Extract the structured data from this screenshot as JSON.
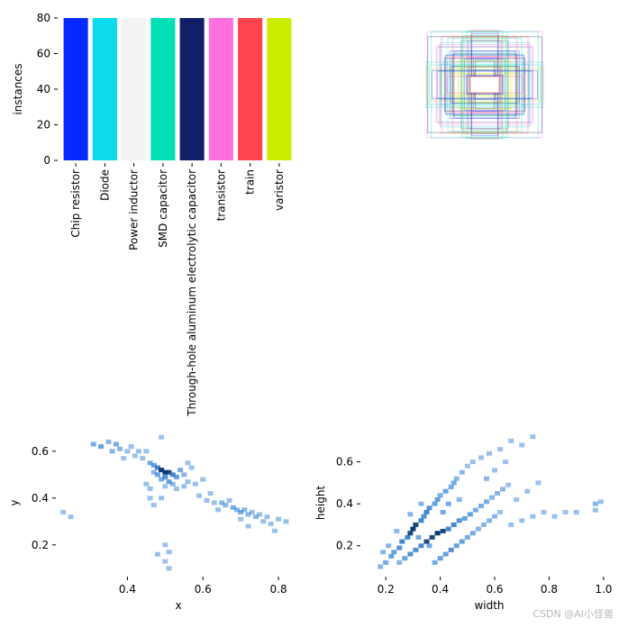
{
  "chart_data": [
    {
      "type": "bar",
      "ylabel": "instances",
      "ylim": [
        0,
        80
      ],
      "yticks": [
        "0",
        "20",
        "40",
        "60",
        "80"
      ],
      "categories": [
        "Chip resistor",
        "Diode",
        "Power inductor",
        "SMD capacitor",
        "Through-hole aluminum electrolytic capacitor",
        "transistor",
        "train",
        "varistor"
      ],
      "values": [
        80,
        80,
        80,
        80,
        80,
        80,
        80,
        80
      ],
      "colors": [
        "#042aff",
        "#0bdbeb",
        "#f3f3f3",
        "#00dfb7",
        "#111f68",
        "#ff6fdd",
        "#ff444f",
        "#cced00"
      ]
    },
    {
      "type": "box-overlay",
      "description_colors": [
        "#042aff",
        "#0bdbeb",
        "#00dfb7",
        "#111f68",
        "#ff6fdd",
        "#ff444f",
        "#cced00"
      ]
    },
    {
      "type": "heatmap",
      "xlabel": "x",
      "ylabel": "y",
      "xlim": [
        0.22,
        0.85
      ],
      "ylim": [
        0.08,
        0.68
      ],
      "xticks": [
        "0.4",
        "0.6",
        "0.8"
      ],
      "yticks": [
        "0.2",
        "0.4",
        "0.6"
      ],
      "color": "#1f77d4",
      "points": [
        [
          0.31,
          0.63,
          0.5
        ],
        [
          0.33,
          0.62,
          0.6
        ],
        [
          0.35,
          0.64,
          0.4
        ],
        [
          0.37,
          0.63,
          0.5
        ],
        [
          0.36,
          0.6,
          0.4
        ],
        [
          0.38,
          0.61,
          0.4
        ],
        [
          0.4,
          0.6,
          0.3
        ],
        [
          0.42,
          0.58,
          0.3
        ],
        [
          0.39,
          0.57,
          0.3
        ],
        [
          0.44,
          0.57,
          0.3
        ],
        [
          0.46,
          0.55,
          0.5
        ],
        [
          0.47,
          0.54,
          0.6
        ],
        [
          0.48,
          0.53,
          0.8
        ],
        [
          0.49,
          0.52,
          1.0
        ],
        [
          0.5,
          0.51,
          1.0
        ],
        [
          0.51,
          0.51,
          0.9
        ],
        [
          0.52,
          0.5,
          0.8
        ],
        [
          0.5,
          0.49,
          0.7
        ],
        [
          0.49,
          0.48,
          0.5
        ],
        [
          0.51,
          0.47,
          0.6
        ],
        [
          0.53,
          0.49,
          0.6
        ],
        [
          0.54,
          0.52,
          0.5
        ],
        [
          0.55,
          0.5,
          0.4
        ],
        [
          0.48,
          0.5,
          0.6
        ],
        [
          0.47,
          0.51,
          0.4
        ],
        [
          0.52,
          0.46,
          0.4
        ],
        [
          0.5,
          0.45,
          0.3
        ],
        [
          0.53,
          0.44,
          0.3
        ],
        [
          0.56,
          0.47,
          0.3
        ],
        [
          0.58,
          0.46,
          0.3
        ],
        [
          0.57,
          0.53,
          0.3
        ],
        [
          0.6,
          0.48,
          0.3
        ],
        [
          0.45,
          0.46,
          0.3
        ],
        [
          0.46,
          0.44,
          0.3
        ],
        [
          0.62,
          0.42,
          0.3
        ],
        [
          0.63,
          0.38,
          0.3
        ],
        [
          0.65,
          0.38,
          0.4
        ],
        [
          0.66,
          0.37,
          0.4
        ],
        [
          0.68,
          0.36,
          0.5
        ],
        [
          0.69,
          0.35,
          0.4
        ],
        [
          0.7,
          0.34,
          0.5
        ],
        [
          0.71,
          0.35,
          0.4
        ],
        [
          0.72,
          0.33,
          0.4
        ],
        [
          0.73,
          0.34,
          0.3
        ],
        [
          0.74,
          0.32,
          0.4
        ],
        [
          0.75,
          0.33,
          0.3
        ],
        [
          0.76,
          0.3,
          0.3
        ],
        [
          0.77,
          0.32,
          0.3
        ],
        [
          0.78,
          0.29,
          0.3
        ],
        [
          0.8,
          0.31,
          0.3
        ],
        [
          0.7,
          0.31,
          0.3
        ],
        [
          0.72,
          0.28,
          0.3
        ],
        [
          0.67,
          0.39,
          0.3
        ],
        [
          0.64,
          0.35,
          0.3
        ],
        [
          0.59,
          0.41,
          0.3
        ],
        [
          0.61,
          0.39,
          0.3
        ],
        [
          0.79,
          0.26,
          0.3
        ],
        [
          0.82,
          0.3,
          0.3
        ],
        [
          0.23,
          0.34,
          0.3
        ],
        [
          0.25,
          0.32,
          0.3
        ],
        [
          0.49,
          0.66,
          0.3
        ],
        [
          0.41,
          0.62,
          0.3
        ],
        [
          0.43,
          0.6,
          0.3
        ],
        [
          0.45,
          0.6,
          0.3
        ],
        [
          0.5,
          0.2,
          0.3
        ],
        [
          0.51,
          0.17,
          0.3
        ],
        [
          0.5,
          0.13,
          0.3
        ],
        [
          0.51,
          0.1,
          0.3
        ],
        [
          0.48,
          0.16,
          0.3
        ],
        [
          0.47,
          0.37,
          0.3
        ],
        [
          0.49,
          0.4,
          0.3
        ],
        [
          0.46,
          0.4,
          0.3
        ],
        [
          0.55,
          0.45,
          0.3
        ],
        [
          0.56,
          0.55,
          0.3
        ]
      ]
    },
    {
      "type": "heatmap",
      "xlabel": "width",
      "ylabel": "height",
      "xlim": [
        0.12,
        1.04
      ],
      "ylim": [
        0.07,
        0.74
      ],
      "xticks": [
        "0.2",
        "0.4",
        "0.6",
        "0.8",
        "1.0"
      ],
      "yticks": [
        "0.2",
        "0.4",
        "0.6"
      ],
      "color": "#1f77d4",
      "points": [
        [
          0.18,
          0.1,
          0.4
        ],
        [
          0.2,
          0.12,
          0.5
        ],
        [
          0.22,
          0.15,
          0.6
        ],
        [
          0.23,
          0.17,
          0.6
        ],
        [
          0.25,
          0.19,
          0.7
        ],
        [
          0.26,
          0.22,
          0.8
        ],
        [
          0.28,
          0.24,
          0.8
        ],
        [
          0.29,
          0.26,
          0.9
        ],
        [
          0.3,
          0.28,
          1.0
        ],
        [
          0.31,
          0.3,
          0.9
        ],
        [
          0.33,
          0.32,
          0.8
        ],
        [
          0.34,
          0.34,
          0.7
        ],
        [
          0.35,
          0.36,
          0.8
        ],
        [
          0.36,
          0.38,
          0.7
        ],
        [
          0.38,
          0.4,
          0.6
        ],
        [
          0.39,
          0.42,
          0.6
        ],
        [
          0.4,
          0.44,
          0.5
        ],
        [
          0.42,
          0.46,
          0.6
        ],
        [
          0.44,
          0.48,
          0.5
        ],
        [
          0.45,
          0.5,
          0.5
        ],
        [
          0.27,
          0.14,
          0.6
        ],
        [
          0.29,
          0.16,
          0.7
        ],
        [
          0.31,
          0.18,
          0.7
        ],
        [
          0.33,
          0.2,
          0.8
        ],
        [
          0.35,
          0.22,
          0.9
        ],
        [
          0.37,
          0.24,
          0.9
        ],
        [
          0.39,
          0.26,
          1.0
        ],
        [
          0.41,
          0.27,
          0.9
        ],
        [
          0.43,
          0.28,
          0.8
        ],
        [
          0.45,
          0.3,
          0.8
        ],
        [
          0.47,
          0.32,
          0.7
        ],
        [
          0.49,
          0.33,
          0.6
        ],
        [
          0.51,
          0.35,
          0.6
        ],
        [
          0.53,
          0.37,
          0.5
        ],
        [
          0.55,
          0.39,
          0.5
        ],
        [
          0.57,
          0.41,
          0.5
        ],
        [
          0.59,
          0.43,
          0.4
        ],
        [
          0.61,
          0.45,
          0.4
        ],
        [
          0.63,
          0.47,
          0.4
        ],
        [
          0.65,
          0.49,
          0.3
        ],
        [
          0.38,
          0.12,
          0.5
        ],
        [
          0.4,
          0.14,
          0.6
        ],
        [
          0.42,
          0.16,
          0.6
        ],
        [
          0.44,
          0.18,
          0.7
        ],
        [
          0.46,
          0.2,
          0.6
        ],
        [
          0.48,
          0.22,
          0.6
        ],
        [
          0.5,
          0.24,
          0.5
        ],
        [
          0.52,
          0.26,
          0.5
        ],
        [
          0.54,
          0.28,
          0.4
        ],
        [
          0.56,
          0.3,
          0.4
        ],
        [
          0.58,
          0.32,
          0.4
        ],
        [
          0.6,
          0.34,
          0.4
        ],
        [
          0.62,
          0.36,
          0.3
        ],
        [
          0.46,
          0.52,
          0.4
        ],
        [
          0.48,
          0.55,
          0.4
        ],
        [
          0.5,
          0.58,
          0.3
        ],
        [
          0.52,
          0.6,
          0.3
        ],
        [
          0.55,
          0.62,
          0.3
        ],
        [
          0.58,
          0.64,
          0.3
        ],
        [
          0.62,
          0.66,
          0.3
        ],
        [
          0.66,
          0.7,
          0.3
        ],
        [
          0.7,
          0.68,
          0.3
        ],
        [
          0.74,
          0.72,
          0.3
        ],
        [
          0.66,
          0.3,
          0.3
        ],
        [
          0.7,
          0.32,
          0.3
        ],
        [
          0.74,
          0.34,
          0.3
        ],
        [
          0.78,
          0.36,
          0.3
        ],
        [
          0.82,
          0.34,
          0.3
        ],
        [
          0.86,
          0.36,
          0.3
        ],
        [
          0.9,
          0.36,
          0.3
        ],
        [
          0.97,
          0.4,
          0.4
        ],
        [
          0.97,
          0.37,
          0.3
        ],
        [
          0.99,
          0.41,
          0.3
        ],
        [
          0.21,
          0.2,
          0.4
        ],
        [
          0.19,
          0.17,
          0.4
        ],
        [
          0.24,
          0.27,
          0.4
        ],
        [
          0.32,
          0.24,
          0.5
        ],
        [
          0.36,
          0.2,
          0.5
        ],
        [
          0.47,
          0.42,
          0.4
        ],
        [
          0.57,
          0.52,
          0.4
        ],
        [
          0.6,
          0.56,
          0.3
        ],
        [
          0.64,
          0.6,
          0.3
        ],
        [
          0.68,
          0.42,
          0.3
        ],
        [
          0.72,
          0.46,
          0.3
        ],
        [
          0.76,
          0.5,
          0.3
        ],
        [
          0.33,
          0.4,
          0.4
        ],
        [
          0.29,
          0.35,
          0.4
        ],
        [
          0.41,
          0.36,
          0.5
        ],
        [
          0.43,
          0.4,
          0.5
        ],
        [
          0.25,
          0.12,
          0.4
        ]
      ]
    }
  ],
  "watermark": "CSDN @AI小怪兽"
}
